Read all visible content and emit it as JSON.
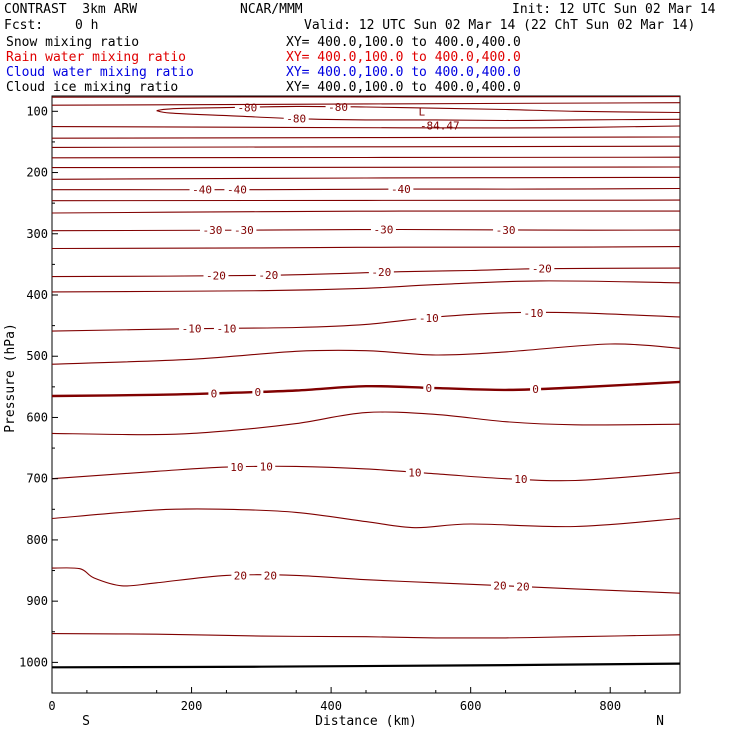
{
  "header": {
    "model": "CONTRAST  3km ARW",
    "center": "NCAR/MMM",
    "init": "Init: 12 UTC Sun 02 Mar 14",
    "fcst_label": "Fcst:",
    "fcst_value": "0 h",
    "valid": "Valid: 12 UTC Sun 02 Mar 14 (22 ChT Sun 02 Mar 14)"
  },
  "fields": [
    {
      "name": "Snow mixing ratio",
      "xy": "XY= 400.0,100.0 to 400.0,400.0",
      "color": "#000000"
    },
    {
      "name": "Rain water mixing ratio",
      "xy": "XY= 400.0,100.0 to 400.0,400.0",
      "color": "#e00000"
    },
    {
      "name": "Cloud water mixing ratio",
      "xy": "XY= 400.0,100.0 to 400.0,400.0",
      "color": "#0000e0"
    },
    {
      "name": "Cloud ice mixing ratio",
      "xy": "XY= 400.0,100.0 to 400.0,400.0",
      "color": "#000000"
    }
  ],
  "chart_data": {
    "type": "line",
    "subtype": "contour cross-section",
    "xlabel": "Distance (km)",
    "ylabel": "Pressure (hPa)",
    "xlim": [
      0,
      900
    ],
    "ylim": [
      1050,
      75
    ],
    "y_inverted": true,
    "x_ticks": [
      "0",
      "200",
      "400",
      "600",
      "800"
    ],
    "x_tick_values": [
      0,
      200,
      400,
      600,
      800
    ],
    "y_ticks": [
      "100",
      "200",
      "300",
      "400",
      "500",
      "600",
      "700",
      "800",
      "900",
      "1000"
    ],
    "y_tick_values": [
      100,
      200,
      300,
      400,
      500,
      600,
      700,
      800,
      900,
      1000
    ],
    "end_labels": {
      "left": "S",
      "right": "N"
    },
    "contour_color": "#800000",
    "grid": false,
    "low_marker": {
      "symbol": "L",
      "value": "-84.47",
      "x": 530,
      "pressure": 117
    },
    "contours": [
      {
        "x": [
          0,
          900
        ],
        "p": [
          77,
          76
        ]
      },
      {
        "x": [
          0,
          900
        ],
        "p": [
          90,
          86
        ]
      },
      {
        "x": [
          150,
          170,
          250,
          350,
          450,
          550,
          650,
          750,
          900
        ],
        "p": [
          99,
          96,
          94,
          92,
          93,
          95,
          97,
          100,
          102
        ],
        "labels": [
          {
            "text": "-80",
            "x": 280,
            "p": 96
          },
          {
            "text": "-80",
            "x": 410,
            "p": 94
          }
        ]
      },
      {
        "x": [
          150,
          170,
          250,
          350,
          450,
          550,
          650,
          750,
          900
        ],
        "p": [
          99,
          103,
          107,
          112,
          114,
          114,
          115,
          114,
          113
        ],
        "labels": [
          {
            "text": "-80",
            "x": 350,
            "p": 111
          }
        ]
      },
      {
        "x": [
          0,
          250,
          500,
          700,
          900
        ],
        "p": [
          125,
          126,
          127,
          127,
          124
        ]
      },
      {
        "x": [
          0,
          900
        ],
        "p": [
          144,
          142
        ]
      },
      {
        "x": [
          0,
          900
        ],
        "p": [
          159,
          157
        ]
      },
      {
        "x": [
          0,
          900
        ],
        "p": [
          176,
          175
        ]
      },
      {
        "x": [
          0,
          900
        ],
        "p": [
          192,
          191
        ]
      },
      {
        "x": [
          0,
          450,
          900
        ],
        "p": [
          211,
          209,
          208
        ]
      },
      {
        "x": [
          0,
          300,
          500,
          700,
          900
        ],
        "p": [
          228,
          228,
          227,
          227,
          226
        ],
        "labels": [
          {
            "text": "-40",
            "x": 215,
            "p": 228
          },
          {
            "text": "-40",
            "x": 265,
            "p": 228
          },
          {
            "text": "-40",
            "x": 500,
            "p": 227
          }
        ]
      },
      {
        "x": [
          0,
          900
        ],
        "p": [
          246,
          245
        ]
      },
      {
        "x": [
          0,
          300,
          500,
          700,
          900
        ],
        "p": [
          266,
          264,
          263,
          263,
          263
        ]
      },
      {
        "x": [
          0,
          300,
          500,
          700,
          900
        ],
        "p": [
          295,
          294,
          293,
          294,
          294
        ],
        "labels": [
          {
            "text": "-30",
            "x": 230,
            "p": 295
          },
          {
            "text": "-30",
            "x": 275,
            "p": 295
          },
          {
            "text": "-30",
            "x": 475,
            "p": 293
          },
          {
            "text": "-30",
            "x": 650,
            "p": 294
          }
        ]
      },
      {
        "x": [
          0,
          300,
          500,
          700,
          900
        ],
        "p": [
          324,
          323,
          322,
          322,
          321
        ]
      },
      {
        "x": [
          0,
          300,
          500,
          600,
          700,
          900
        ],
        "p": [
          370,
          368,
          362,
          360,
          357,
          356
        ],
        "labels": [
          {
            "text": "-20",
            "x": 235,
            "p": 369
          },
          {
            "text": "-20",
            "x": 310,
            "p": 368
          },
          {
            "text": "-20",
            "x": 472,
            "p": 362
          },
          {
            "text": "-20",
            "x": 702,
            "p": 357
          }
        ]
      },
      {
        "x": [
          0,
          300,
          450,
          550,
          700,
          900
        ],
        "p": [
          395,
          393,
          389,
          383,
          377,
          380
        ]
      },
      {
        "x": [
          0,
          200,
          350,
          450,
          550,
          650,
          750,
          900
        ],
        "p": [
          459,
          455,
          453,
          448,
          436,
          429,
          429,
          436
        ],
        "labels": [
          {
            "text": "-10",
            "x": 200,
            "p": 456
          },
          {
            "text": "-10",
            "x": 250,
            "p": 455
          },
          {
            "text": "-10",
            "x": 540,
            "p": 438
          },
          {
            "text": "-10",
            "x": 690,
            "p": 430
          }
        ]
      },
      {
        "x": [
          0,
          200,
          350,
          450,
          550,
          650,
          800,
          900
        ],
        "p": [
          513,
          505,
          492,
          491,
          498,
          493,
          480,
          487
        ]
      },
      {
        "x": [
          0,
          150,
          250,
          350,
          450,
          550,
          650,
          750,
          900
        ],
        "p": [
          565,
          563,
          560,
          556,
          549,
          552,
          555,
          551,
          542
        ],
        "bold": true,
        "labels": [
          {
            "text": "0",
            "x": 232,
            "p": 563
          },
          {
            "text": "0",
            "x": 295,
            "p": 562
          },
          {
            "text": "0",
            "x": 540,
            "p": 549
          },
          {
            "text": "0",
            "x": 693,
            "p": 555
          }
        ]
      },
      {
        "x": [
          0,
          150,
          250,
          350,
          450,
          550,
          650,
          750,
          900
        ],
        "p": [
          626,
          628,
          622,
          610,
          592,
          595,
          607,
          612,
          611
        ]
      },
      {
        "x": [
          0,
          150,
          250,
          350,
          450,
          550,
          650,
          750,
          900
        ],
        "p": [
          700,
          688,
          681,
          680,
          684,
          692,
          700,
          703,
          690
        ],
        "labels": [
          {
            "text": "10",
            "x": 265,
            "p": 681
          },
          {
            "text": "10",
            "x": 307,
            "p": 681
          },
          {
            "text": "10",
            "x": 520,
            "p": 685
          },
          {
            "text": "10",
            "x": 672,
            "p": 700
          }
        ]
      },
      {
        "x": [
          0,
          150,
          250,
          350,
          450,
          520,
          600,
          750,
          900
        ],
        "p": [
          765,
          751,
          750,
          755,
          770,
          780,
          774,
          778,
          765
        ]
      },
      {
        "x": [
          0,
          40,
          60,
          100,
          150,
          250,
          350,
          450,
          550,
          650,
          750,
          900
        ],
        "p": [
          846,
          847,
          862,
          875,
          870,
          858,
          858,
          865,
          870,
          875,
          880,
          887
        ],
        "labels": [
          {
            "text": "20",
            "x": 270,
            "p": 858
          },
          {
            "text": "20",
            "x": 313,
            "p": 858
          },
          {
            "text": "20",
            "x": 642,
            "p": 877
          },
          {
            "text": "20",
            "x": 675,
            "p": 879
          }
        ]
      },
      {
        "x": [
          0,
          150,
          300,
          450,
          550,
          650,
          750,
          900
        ],
        "p": [
          953,
          954,
          957,
          958,
          960,
          960,
          958,
          955
        ]
      }
    ],
    "surface_line": {
      "x": [
        0,
        300,
        600,
        900
      ],
      "p": [
        1008,
        1007,
        1005,
        1002
      ]
    }
  }
}
